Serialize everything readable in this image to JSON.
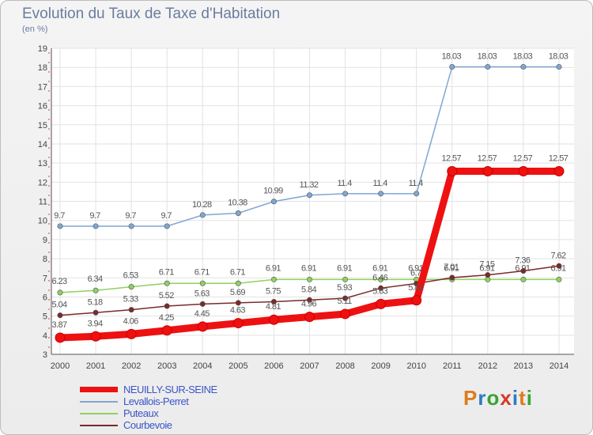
{
  "title": "Evolution du Taux de Taxe d'Habitation",
  "subtitle": "(en %)",
  "brand": {
    "text": "Proxiti",
    "colors": [
      "#e07a1c",
      "#2a7cc0",
      "#3aa335",
      "#d33a2a",
      "#2a7cc0",
      "#e07a1c",
      "#3aa335"
    ]
  },
  "chart_data": {
    "type": "line",
    "title": "Evolution du Taux de Taxe d'Habitation",
    "ylabel": "(en %)",
    "ylim": [
      3,
      19
    ],
    "yticks": [
      3,
      4,
      5,
      6,
      7,
      8,
      9,
      10,
      11,
      12,
      13,
      14,
      15,
      16,
      17,
      18,
      19
    ],
    "x": [
      "2000",
      "2001",
      "2002",
      "2003",
      "2004",
      "2005",
      "2006",
      "2007",
      "2008",
      "2009",
      "2010",
      "2011",
      "2012",
      "2013",
      "2014"
    ],
    "grid": true,
    "legend": "bottom-left",
    "series": [
      {
        "name": "Levallois-Perret",
        "color": "#7fa7d2",
        "values": [
          9.7,
          9.7,
          9.7,
          9.7,
          10.28,
          10.38,
          10.99,
          11.32,
          11.4,
          11.4,
          11.4,
          18.03,
          18.03,
          18.03,
          18.03
        ],
        "labels": [
          "9.7",
          "9.7",
          "9.7",
          "9.7",
          "10.28",
          "10.38",
          "10.99",
          "11.32",
          "11.4",
          "11.4",
          "11.4",
          "18.03",
          "18.03",
          "18.03",
          "18.03"
        ]
      },
      {
        "name": "Puteaux",
        "color": "#8fd160",
        "values": [
          6.23,
          6.34,
          6.53,
          6.71,
          6.71,
          6.71,
          6.91,
          6.91,
          6.91,
          6.91,
          6.91,
          6.91,
          6.91,
          6.91,
          6.91
        ],
        "labels": [
          "6.23",
          "6.34",
          "6.53",
          "6.71",
          "6.71",
          "6.71",
          "6.91",
          "6.91",
          "6.91",
          "6.91",
          "6.91",
          "6.91",
          "6.91",
          "6.91",
          "6.91"
        ]
      },
      {
        "name": "Courbevoie",
        "color": "#7a2a2a",
        "values": [
          5.04,
          5.18,
          5.33,
          5.52,
          5.63,
          5.69,
          5.75,
          5.84,
          5.93,
          6.46,
          6.7,
          7.01,
          7.15,
          7.36,
          7.62
        ],
        "labels": [
          "5.04",
          "5.18",
          "5.33",
          "5.52",
          "5.63",
          "5.69",
          "5.75",
          "5.84",
          "5.93",
          "6.46",
          "6.7",
          "7.01",
          "7.15",
          "7.36",
          "7.62"
        ]
      },
      {
        "name": "NEUILLY-SUR-SEINE",
        "color": "#ee1111",
        "values": [
          3.87,
          3.94,
          4.06,
          4.25,
          4.45,
          4.63,
          4.81,
          4.96,
          5.11,
          5.63,
          5.82,
          12.57,
          12.57,
          12.57,
          12.57
        ],
        "labels": [
          "3.87",
          "3.94",
          "4.06",
          "4.25",
          "4.45",
          "4.63",
          "4.81",
          "4.96",
          "5.11",
          "5.63",
          "5.82",
          "12.57",
          "12.57",
          "12.57",
          "12.57"
        ]
      }
    ]
  },
  "legend_items": [
    {
      "name": "NEUILLY-SUR-SEINE",
      "color": "#ee1111"
    },
    {
      "name": "Levallois-Perret",
      "color": "#7fa7d2"
    },
    {
      "name": "Puteaux",
      "color": "#8fd160"
    },
    {
      "name": "Courbevoie",
      "color": "#7a2a2a"
    }
  ]
}
